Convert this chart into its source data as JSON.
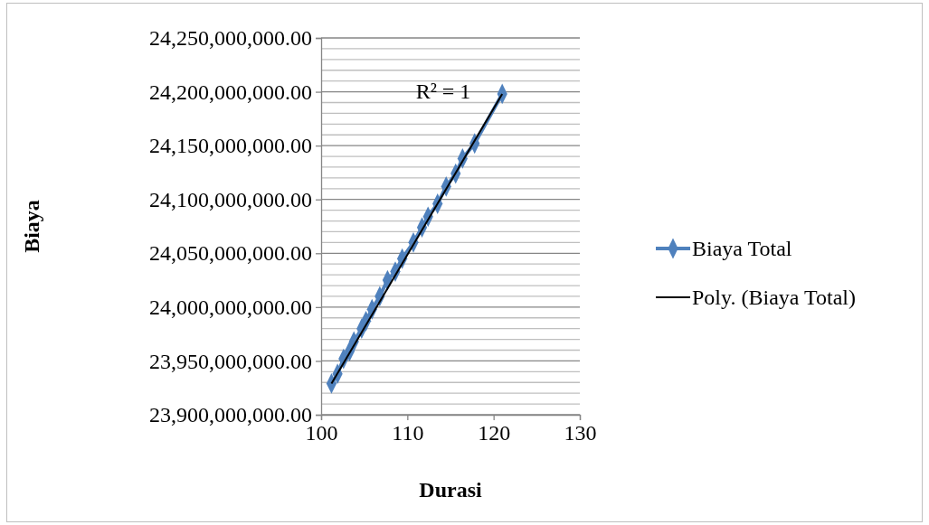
{
  "chart_data": {
    "type": "line",
    "xlabel": "Durasi",
    "ylabel": "Biaya",
    "xlim": [
      100,
      130
    ],
    "xticks": [
      100,
      110,
      120,
      130
    ],
    "ylim": [
      23900000000,
      24250000000
    ],
    "yticks": [
      {
        "value": 23900000000,
        "label": "23,900,000,000.00"
      },
      {
        "value": 23910000000,
        "label": null
      },
      {
        "value": 23920000000,
        "label": null
      },
      {
        "value": 23930000000,
        "label": null
      },
      {
        "value": 23940000000,
        "label": null
      },
      {
        "value": 23950000000,
        "label": "23,950,000,000.00"
      },
      {
        "value": 23960000000,
        "label": null
      },
      {
        "value": 23970000000,
        "label": null
      },
      {
        "value": 23980000000,
        "label": null
      },
      {
        "value": 23990000000,
        "label": null
      },
      {
        "value": 24000000000,
        "label": "24,000,000,000.00"
      },
      {
        "value": 24010000000,
        "label": null
      },
      {
        "value": 24020000000,
        "label": null
      },
      {
        "value": 24030000000,
        "label": null
      },
      {
        "value": 24040000000,
        "label": null
      },
      {
        "value": 24050000000,
        "label": "24,050,000,000.00"
      },
      {
        "value": 24060000000,
        "label": null
      },
      {
        "value": 24070000000,
        "label": null
      },
      {
        "value": 24080000000,
        "label": null
      },
      {
        "value": 24090000000,
        "label": null
      },
      {
        "value": 24100000000,
        "label": "24,100,000,000.00"
      },
      {
        "value": 24110000000,
        "label": null
      },
      {
        "value": 24120000000,
        "label": null
      },
      {
        "value": 24130000000,
        "label": null
      },
      {
        "value": 24140000000,
        "label": null
      },
      {
        "value": 24150000000,
        "label": "24,150,000,000.00"
      },
      {
        "value": 24160000000,
        "label": null
      },
      {
        "value": 24170000000,
        "label": null
      },
      {
        "value": 24180000000,
        "label": null
      },
      {
        "value": 24190000000,
        "label": null
      },
      {
        "value": 24200000000,
        "label": "24,200,000,000.00"
      },
      {
        "value": 24210000000,
        "label": null
      },
      {
        "value": 24220000000,
        "label": null
      },
      {
        "value": 24230000000,
        "label": null
      },
      {
        "value": 24240000000,
        "label": null
      },
      {
        "value": 24250000000,
        "label": "24,250,000,000.00"
      }
    ],
    "grid": "y",
    "legend": "right",
    "series": [
      {
        "name": "Biaya Total",
        "color": "#4f81bd",
        "marker": "diamond",
        "x": [
          101.2,
          101.9,
          102.6,
          103.3,
          103.8,
          104.7,
          105.2,
          105.9,
          106.8,
          107.7,
          108.6,
          109.4,
          110.7,
          111.7,
          112.4,
          113.5,
          114.5,
          115.6,
          116.4,
          117.8,
          121.0
        ],
        "values": [
          23929000000,
          23938000000,
          23952000000,
          23959000000,
          23968000000,
          23980000000,
          23987000000,
          23998000000,
          24010000000,
          24025000000,
          24033000000,
          24045000000,
          24060000000,
          24074000000,
          24084000000,
          24096000000,
          24112000000,
          24124000000,
          24138000000,
          24152000000,
          24198000000
        ]
      },
      {
        "name": "Poly. (Biaya Total)",
        "type": "line",
        "color": "#000000",
        "marker": "none",
        "x": [
          101.2,
          121.0
        ],
        "values": [
          23929000000,
          24198000000
        ]
      }
    ],
    "annotations": [
      "R² = 1"
    ]
  }
}
